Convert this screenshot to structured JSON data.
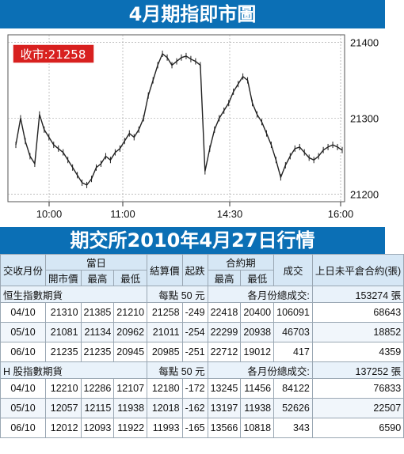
{
  "header": {
    "title": "4月期指即市圖"
  },
  "chart_data": {
    "type": "line",
    "legend_label": "收市:21258",
    "x_ticks": [
      "10:00",
      "11:00",
      "14:30",
      "16:00"
    ],
    "y_ticks": [
      21400,
      21300,
      21200
    ],
    "ylim": [
      21190,
      21410
    ],
    "grid": true,
    "series": [
      {
        "values": [
          21265,
          21300,
          21270,
          21250,
          21240,
          21305,
          21285,
          21275,
          21265,
          21260,
          21255,
          21245,
          21235,
          21225,
          21215,
          21212,
          21220,
          21235,
          21240,
          21250,
          21245,
          21255,
          21260,
          21270,
          21280,
          21275,
          21285,
          21300,
          21330,
          21350,
          21370,
          21385,
          21380,
          21370,
          21375,
          21380,
          21382,
          21378,
          21375,
          21370,
          21230,
          21260,
          21285,
          21300,
          21310,
          21320,
          21335,
          21345,
          21355,
          21350,
          21320,
          21305,
          21295,
          21280,
          21265,
          21245,
          21222,
          21238,
          21250,
          21260,
          21262,
          21255,
          21248,
          21245,
          21250,
          21258,
          21262,
          21265,
          21262,
          21258
        ]
      }
    ]
  },
  "section": {
    "title": "期交所2010年4月27日行情"
  },
  "table": {
    "headers": {
      "col1": "交收月份",
      "day_group": "當日",
      "open": "開市價",
      "high": "最高",
      "low": "最低",
      "settle": "結算價",
      "change": "起跌",
      "contract_group": "合約期",
      "c_high": "最高",
      "c_low": "最低",
      "volume": "成交",
      "oi": "上日未平倉合約(張)"
    },
    "groups": [
      {
        "name": "恒生指數期貨",
        "point_value": "每點 50 元",
        "total_label": "各月份總成交:",
        "total_value": "153274 張",
        "rows": [
          [
            "04/10",
            "21310",
            "21385",
            "21210",
            "21258",
            "-249",
            "22418",
            "20400",
            "106091",
            "68643"
          ],
          [
            "05/10",
            "21081",
            "21134",
            "20962",
            "21011",
            "-254",
            "22299",
            "20938",
            "46703",
            "18852"
          ],
          [
            "06/10",
            "21235",
            "21235",
            "20945",
            "20985",
            "-251",
            "22712",
            "19012",
            "417",
            "4359"
          ]
        ]
      },
      {
        "name": "H 股指數期貨",
        "point_value": "每點 50 元",
        "total_label": "各月份總成交:",
        "total_value": "137252 張",
        "rows": [
          [
            "04/10",
            "12210",
            "12286",
            "12107",
            "12180",
            "-172",
            "13245",
            "11456",
            "84122",
            "76833"
          ],
          [
            "05/10",
            "12057",
            "12115",
            "11938",
            "12018",
            "-162",
            "13197",
            "11938",
            "52626",
            "22507"
          ],
          [
            "06/10",
            "12012",
            "12093",
            "11922",
            "11993",
            "-165",
            "13566",
            "10818",
            "343",
            "6590"
          ]
        ]
      }
    ]
  }
}
